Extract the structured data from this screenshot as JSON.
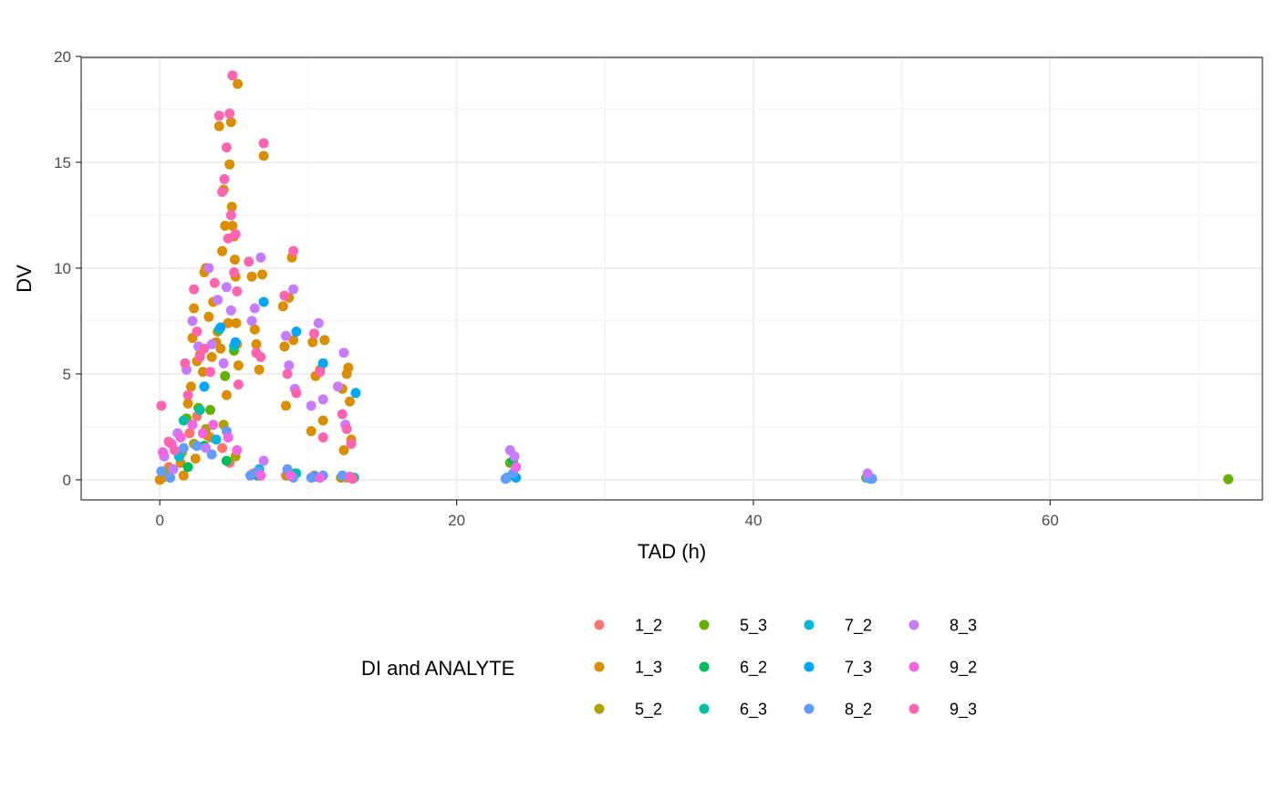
{
  "chart_data": {
    "type": "scatter",
    "title": "",
    "xlabel": "TAD (h)",
    "ylabel": "DV",
    "xlim": [
      -5.3,
      74.3
    ],
    "ylim": [
      -0.95,
      19.95
    ],
    "x_ticks": [
      0,
      20,
      40,
      60
    ],
    "y_ticks": [
      0,
      5,
      10,
      15,
      20
    ],
    "grid": true,
    "legend": {
      "title": "DI and ANALYTE",
      "position": "bottom",
      "entries": [
        {
          "name": "1_2",
          "color": "#F8766D"
        },
        {
          "name": "1_3",
          "color": "#DB8E00"
        },
        {
          "name": "5_2",
          "color": "#AEA200"
        },
        {
          "name": "5_3",
          "color": "#64B200"
        },
        {
          "name": "6_2",
          "color": "#00BD5C"
        },
        {
          "name": "6_3",
          "color": "#00C1A7"
        },
        {
          "name": "7_2",
          "color": "#00BADE"
        },
        {
          "name": "7_3",
          "color": "#00A6FF"
        },
        {
          "name": "8_2",
          "color": "#619CFF"
        },
        {
          "name": "8_3",
          "color": "#C77CFF"
        },
        {
          "name": "9_2",
          "color": "#F564E3"
        },
        {
          "name": "9_3",
          "color": "#FF64B0"
        }
      ]
    },
    "series": [
      {
        "name": "1_2",
        "points": [
          [
            0.2,
            0.1
          ],
          [
            0.6,
            0.6
          ],
          [
            1.4,
            1.2
          ],
          [
            2.0,
            2.2
          ],
          [
            2.5,
            3.0
          ],
          [
            3.4,
            2.0
          ],
          [
            4.2,
            1.5
          ],
          [
            4.7,
            0.8
          ],
          [
            6.3,
            0.3
          ],
          [
            8.5,
            0.2
          ],
          [
            10.4,
            0.2
          ],
          [
            12.6,
            0.1
          ]
        ]
      },
      {
        "name": "1_3",
        "points": [
          [
            0.0,
            0.0
          ],
          [
            0.3,
            0.2
          ],
          [
            0.8,
            0.5
          ],
          [
            1.4,
            0.8
          ],
          [
            1.6,
            0.2
          ],
          [
            1.9,
            3.6
          ],
          [
            2.1,
            4.4
          ],
          [
            2.2,
            6.7
          ],
          [
            2.3,
            8.1
          ],
          [
            2.4,
            1.0
          ],
          [
            2.5,
            5.6
          ],
          [
            2.7,
            5.9
          ],
          [
            2.9,
            5.1
          ],
          [
            3.0,
            9.8
          ],
          [
            3.1,
            10.0
          ],
          [
            3.2,
            2.1
          ],
          [
            3.3,
            7.7
          ],
          [
            3.5,
            5.8
          ],
          [
            3.6,
            8.4
          ],
          [
            3.8,
            6.5
          ],
          [
            3.9,
            7.0
          ],
          [
            4.0,
            16.7
          ],
          [
            4.1,
            6.2
          ],
          [
            4.2,
            10.8
          ],
          [
            4.3,
            13.7
          ],
          [
            4.4,
            12.0
          ],
          [
            4.5,
            4.0
          ],
          [
            4.6,
            7.4
          ],
          [
            4.7,
            14.9
          ],
          [
            4.8,
            16.9
          ],
          [
            4.85,
            12.9
          ],
          [
            4.9,
            12.0
          ],
          [
            5.0,
            11.5
          ],
          [
            5.05,
            10.4
          ],
          [
            5.1,
            9.6
          ],
          [
            5.15,
            7.4
          ],
          [
            5.2,
            6.4
          ],
          [
            5.25,
            18.7
          ],
          [
            5.3,
            5.4
          ],
          [
            6.2,
            9.6
          ],
          [
            6.4,
            7.1
          ],
          [
            6.5,
            6.4
          ],
          [
            6.7,
            5.2
          ],
          [
            6.9,
            9.7
          ],
          [
            7.0,
            15.3
          ],
          [
            8.3,
            8.2
          ],
          [
            8.4,
            6.3
          ],
          [
            8.5,
            3.5
          ],
          [
            8.7,
            8.6
          ],
          [
            8.9,
            10.5
          ],
          [
            9.0,
            6.6
          ],
          [
            10.2,
            2.3
          ],
          [
            10.3,
            6.5
          ],
          [
            10.5,
            4.9
          ],
          [
            10.8,
            5.2
          ],
          [
            11.0,
            2.8
          ],
          [
            11.1,
            6.6
          ],
          [
            12.3,
            4.3
          ],
          [
            12.4,
            1.4
          ],
          [
            12.6,
            5.0
          ],
          [
            12.7,
            5.3
          ],
          [
            12.8,
            3.7
          ],
          [
            12.9,
            1.9
          ]
        ]
      },
      {
        "name": "5_2",
        "points": [
          [
            0.5,
            0.4
          ],
          [
            1.5,
            1.3
          ],
          [
            2.3,
            1.7
          ],
          [
            3.1,
            2.4
          ],
          [
            4.3,
            2.6
          ],
          [
            5.1,
            1.1
          ],
          [
            8.6,
            0.2
          ],
          [
            12.2,
            0.1
          ]
        ]
      },
      {
        "name": "5_3",
        "points": [
          [
            1.8,
            2.9
          ],
          [
            2.6,
            3.4
          ],
          [
            3.4,
            3.3
          ],
          [
            4.4,
            4.9
          ],
          [
            5.0,
            6.1
          ],
          [
            23.6,
            0.8
          ],
          [
            47.6,
            0.1
          ],
          [
            72.0,
            0.03
          ]
        ]
      },
      {
        "name": "6_2",
        "points": [
          [
            1.9,
            0.6
          ],
          [
            3.0,
            1.6
          ],
          [
            4.5,
            0.9
          ],
          [
            6.6,
            0.2
          ],
          [
            9.1,
            0.3
          ],
          [
            23.8,
            0.9
          ]
        ]
      },
      {
        "name": "6_3",
        "points": [
          [
            1.6,
            2.8
          ],
          [
            2.7,
            3.3
          ],
          [
            4.0,
            7.1
          ],
          [
            5.0,
            6.3
          ],
          [
            9.2,
            0.3
          ],
          [
            13.1,
            0.1
          ]
        ]
      },
      {
        "name": "7_2",
        "points": [
          [
            1.3,
            1.1
          ],
          [
            3.8,
            1.9
          ],
          [
            6.7,
            0.5
          ],
          [
            10.5,
            0.15
          ],
          [
            23.4,
            0.1
          ],
          [
            47.9,
            0.05
          ]
        ]
      },
      {
        "name": "7_3",
        "points": [
          [
            3.0,
            4.4
          ],
          [
            4.1,
            7.2
          ],
          [
            5.1,
            6.5
          ],
          [
            7.0,
            8.4
          ],
          [
            9.2,
            7.0
          ],
          [
            11.0,
            5.5
          ],
          [
            13.2,
            4.1
          ],
          [
            24.0,
            0.1
          ]
        ]
      },
      {
        "name": "8_2",
        "points": [
          [
            0.1,
            0.4
          ],
          [
            0.7,
            0.1
          ],
          [
            1.6,
            1.5
          ],
          [
            2.5,
            1.6
          ],
          [
            3.5,
            1.2
          ],
          [
            4.5,
            2.3
          ],
          [
            6.1,
            0.2
          ],
          [
            6.6,
            0.4
          ],
          [
            8.6,
            0.5
          ],
          [
            9.0,
            0.1
          ],
          [
            10.2,
            0.1
          ],
          [
            11.0,
            0.2
          ],
          [
            12.3,
            0.2
          ],
          [
            23.3,
            0.05
          ],
          [
            23.8,
            0.3
          ],
          [
            47.7,
            0.1
          ],
          [
            48.0,
            0.05
          ]
        ]
      },
      {
        "name": "8_3",
        "points": [
          [
            0.3,
            1.1
          ],
          [
            0.9,
            0.5
          ],
          [
            1.2,
            2.2
          ],
          [
            1.8,
            5.2
          ],
          [
            2.2,
            7.5
          ],
          [
            2.6,
            6.3
          ],
          [
            3.1,
            1.5
          ],
          [
            3.3,
            10.0
          ],
          [
            3.5,
            6.4
          ],
          [
            3.9,
            8.5
          ],
          [
            4.3,
            5.5
          ],
          [
            4.5,
            9.1
          ],
          [
            4.8,
            8.0
          ],
          [
            6.2,
            7.5
          ],
          [
            6.4,
            8.1
          ],
          [
            6.8,
            10.5
          ],
          [
            7.0,
            0.9
          ],
          [
            8.5,
            6.8
          ],
          [
            8.7,
            5.4
          ],
          [
            9.0,
            9.0
          ],
          [
            9.1,
            4.3
          ],
          [
            10.2,
            3.5
          ],
          [
            10.7,
            7.4
          ],
          [
            11.0,
            3.8
          ],
          [
            12.0,
            4.4
          ],
          [
            12.4,
            6.0
          ],
          [
            12.5,
            2.6
          ],
          [
            23.6,
            1.4
          ],
          [
            23.9,
            1.1
          ],
          [
            47.7,
            0.3
          ]
        ]
      },
      {
        "name": "9_2",
        "points": [
          [
            0.2,
            1.3
          ],
          [
            0.8,
            1.7
          ],
          [
            1.4,
            2.0
          ],
          [
            2.2,
            2.6
          ],
          [
            2.9,
            2.2
          ],
          [
            3.6,
            2.6
          ],
          [
            4.6,
            2.0
          ],
          [
            5.2,
            1.4
          ],
          [
            6.8,
            0.2
          ],
          [
            8.8,
            0.2
          ],
          [
            10.8,
            0.1
          ],
          [
            12.8,
            0.15
          ],
          [
            24.0,
            0.6
          ]
        ]
      },
      {
        "name": "9_3",
        "points": [
          [
            0.1,
            3.5
          ],
          [
            0.6,
            1.8
          ],
          [
            1.0,
            1.4
          ],
          [
            1.7,
            5.5
          ],
          [
            1.9,
            4.0
          ],
          [
            2.3,
            9.0
          ],
          [
            2.5,
            7.0
          ],
          [
            2.7,
            5.8
          ],
          [
            3.0,
            6.2
          ],
          [
            3.4,
            5.1
          ],
          [
            3.7,
            9.3
          ],
          [
            4.0,
            17.2
          ],
          [
            4.2,
            13.6
          ],
          [
            4.35,
            14.2
          ],
          [
            4.5,
            15.7
          ],
          [
            4.6,
            11.4
          ],
          [
            4.7,
            17.3
          ],
          [
            4.8,
            12.5
          ],
          [
            4.9,
            19.1
          ],
          [
            5.0,
            9.8
          ],
          [
            5.1,
            11.6
          ],
          [
            5.2,
            8.9
          ],
          [
            5.3,
            4.5
          ],
          [
            6.0,
            10.3
          ],
          [
            6.5,
            6.0
          ],
          [
            6.8,
            5.8
          ],
          [
            7.0,
            15.9
          ],
          [
            8.4,
            8.7
          ],
          [
            8.6,
            5.0
          ],
          [
            9.0,
            10.8
          ],
          [
            9.2,
            4.1
          ],
          [
            10.4,
            6.9
          ],
          [
            10.8,
            5.1
          ],
          [
            11.0,
            2.0
          ],
          [
            12.3,
            3.1
          ],
          [
            12.6,
            2.4
          ],
          [
            12.9,
            1.7
          ],
          [
            13.0,
            0.05
          ]
        ]
      }
    ]
  }
}
